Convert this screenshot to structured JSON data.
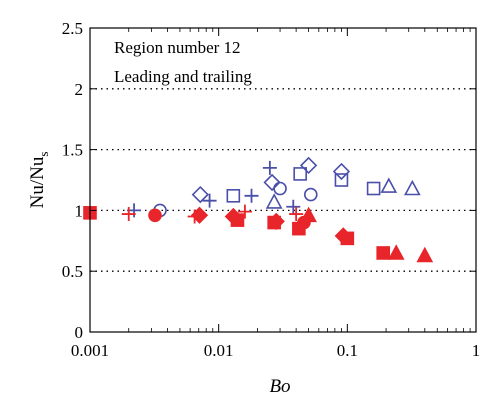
{
  "chart_data": {
    "type": "scatter",
    "annotations": [
      "Region number 12",
      "Leading and trailing"
    ],
    "xlabel": "Bo",
    "ylabel": {
      "base": "Nu/Nu",
      "subscript": "s"
    },
    "x_scale": "log",
    "xlim": [
      0.001,
      1
    ],
    "ylim": [
      0,
      2.5
    ],
    "x_ticks": [
      0.001,
      0.01,
      0.1,
      1
    ],
    "x_tick_labels": [
      "0.001",
      "0.01",
      "0.1",
      "1"
    ],
    "y_ticks": [
      0,
      0.5,
      1,
      1.5,
      2,
      2.5
    ],
    "y_tick_labels": [
      "0",
      "0.5",
      "1",
      "1.5",
      "2",
      "2.5"
    ],
    "grid": "horizontal dotted at 0.5, 1, 1.5, 2",
    "colors": {
      "leading": "#4a4fa8",
      "trailing": "#e8252a"
    },
    "series": [
      {
        "marker": "plus",
        "color": "#4a4fa8",
        "filled": false,
        "points": [
          [
            0.0022,
            1.0
          ],
          [
            0.0085,
            1.08
          ],
          [
            0.018,
            1.12
          ],
          [
            0.025,
            1.35
          ],
          [
            0.038,
            1.03
          ]
        ]
      },
      {
        "marker": "circle",
        "color": "#4a4fa8",
        "filled": false,
        "points": [
          [
            0.0035,
            1.0
          ],
          [
            0.03,
            1.18
          ],
          [
            0.052,
            1.13
          ]
        ]
      },
      {
        "marker": "diamond",
        "color": "#4a4fa8",
        "filled": false,
        "points": [
          [
            0.0072,
            1.13
          ],
          [
            0.026,
            1.23
          ],
          [
            0.05,
            1.37
          ],
          [
            0.09,
            1.32
          ]
        ]
      },
      {
        "marker": "square",
        "color": "#4a4fa8",
        "filled": false,
        "points": [
          [
            0.013,
            1.12
          ],
          [
            0.043,
            1.3
          ],
          [
            0.09,
            1.25
          ],
          [
            0.16,
            1.18
          ]
        ]
      },
      {
        "marker": "triangle",
        "color": "#4a4fa8",
        "filled": false,
        "points": [
          [
            0.027,
            1.07
          ],
          [
            0.21,
            1.2
          ],
          [
            0.32,
            1.18
          ]
        ]
      },
      {
        "marker": "plus",
        "color": "#e8252a",
        "filled": false,
        "points": [
          [
            0.002,
            0.97
          ],
          [
            0.0065,
            0.95
          ],
          [
            0.016,
            0.99
          ],
          [
            0.04,
            0.97
          ]
        ]
      },
      {
        "marker": "square",
        "color": "#e8252a",
        "filled": true,
        "points": [
          [
            0.001,
            0.98
          ],
          [
            0.014,
            0.92
          ],
          [
            0.027,
            0.9
          ],
          [
            0.042,
            0.85
          ],
          [
            0.1,
            0.77
          ],
          [
            0.19,
            0.65
          ]
        ]
      },
      {
        "marker": "circle",
        "color": "#e8252a",
        "filled": true,
        "points": [
          [
            0.0032,
            0.96
          ],
          [
            0.046,
            0.9
          ]
        ]
      },
      {
        "marker": "diamond",
        "color": "#e8252a",
        "filled": true,
        "points": [
          [
            0.0071,
            0.96
          ],
          [
            0.013,
            0.95
          ],
          [
            0.028,
            0.91
          ],
          [
            0.093,
            0.79
          ]
        ]
      },
      {
        "marker": "triangle",
        "color": "#e8252a",
        "filled": true,
        "points": [
          [
            0.05,
            0.96
          ],
          [
            0.24,
            0.65
          ],
          [
            0.4,
            0.63
          ]
        ]
      }
    ]
  }
}
